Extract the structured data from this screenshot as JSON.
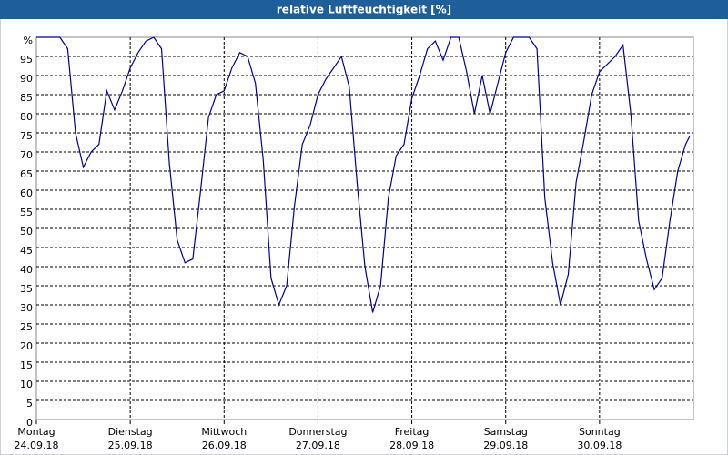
{
  "chart_data": {
    "type": "line",
    "title": "relative Luftfeuchtigkeit [%]",
    "x": [
      0,
      2,
      4,
      6,
      8,
      10,
      12,
      14,
      16,
      18,
      20,
      22,
      24,
      26,
      28,
      30,
      32,
      34,
      36,
      38,
      40,
      42,
      44,
      46,
      48,
      50,
      52,
      54,
      56,
      58,
      60,
      62,
      64,
      66,
      68,
      70,
      72,
      74,
      76,
      78,
      80,
      82,
      84,
      86,
      88,
      90,
      92,
      94,
      96,
      98,
      100,
      102,
      104,
      106,
      108,
      110,
      112,
      114,
      116,
      118,
      120,
      122,
      124,
      126,
      128,
      130,
      132,
      134,
      136,
      138,
      140,
      142,
      144,
      146,
      148,
      150,
      152,
      154,
      156,
      158,
      160,
      162,
      164,
      166,
      167
    ],
    "series": [
      {
        "name": "relative Luftfeuchtigkeit",
        "color": "#0000a0",
        "values": [
          100,
          100,
          100,
          100,
          97,
          75,
          66,
          70,
          72,
          86,
          81,
          86,
          92,
          96,
          99,
          100,
          97,
          67,
          47,
          41,
          42,
          60,
          79,
          85,
          86,
          92,
          96,
          95,
          88,
          68,
          37,
          30,
          35,
          56,
          72,
          77,
          85,
          89,
          92,
          95,
          87,
          62,
          40,
          28,
          35,
          58,
          69,
          72,
          84,
          90,
          97,
          99,
          94,
          100,
          100,
          91,
          80,
          90,
          80,
          88,
          96,
          100,
          100,
          100,
          97,
          58,
          41,
          30,
          38,
          62,
          73,
          85,
          91,
          93,
          95,
          98,
          80,
          52,
          42,
          34,
          37,
          52,
          65,
          72,
          74
        ]
      }
    ],
    "xlim": [
      0,
      168
    ],
    "xticks": [
      {
        "value": 0,
        "label": "Montag",
        "date": "24.09.18"
      },
      {
        "value": 24,
        "label": "Dienstag",
        "date": "25.09.18"
      },
      {
        "value": 48,
        "label": "Mittwoch",
        "date": "26.09.18"
      },
      {
        "value": 72,
        "label": "Donnerstag",
        "date": "27.09.18"
      },
      {
        "value": 96,
        "label": "Freitag",
        "date": "28.09.18"
      },
      {
        "value": 120,
        "label": "Samstag",
        "date": "29.09.18"
      },
      {
        "value": 144,
        "label": "Sonntag",
        "date": "30.09.18"
      }
    ],
    "ylim": [
      0,
      100
    ],
    "yticks": [
      0,
      5,
      10,
      15,
      20,
      25,
      30,
      35,
      40,
      45,
      50,
      55,
      60,
      65,
      70,
      75,
      80,
      85,
      90,
      95,
      {
        "value": 100,
        "label": "%"
      }
    ],
    "grid": true
  }
}
